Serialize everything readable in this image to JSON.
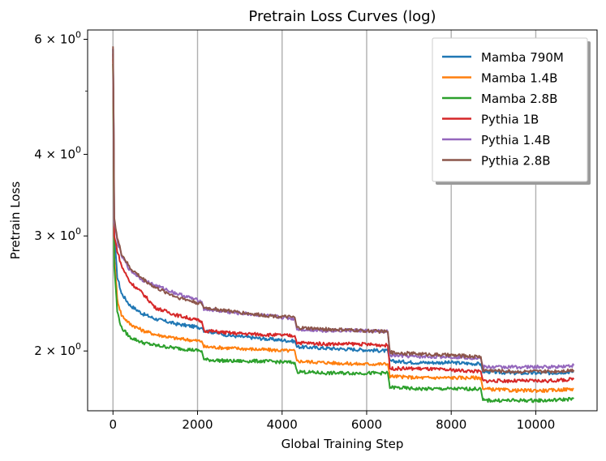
{
  "chart_data": {
    "type": "line",
    "title": "Pretrain Loss Curves (log)",
    "xlabel": "Global Training Step",
    "ylabel": "Pretrain Loss",
    "yscale": "log",
    "xlim": [
      -600,
      11450
    ],
    "ylim": [
      1.62,
      6.2
    ],
    "x_ticks": [
      0,
      2000,
      4000,
      6000,
      8000,
      10000
    ],
    "x_tick_labels": [
      "0",
      "2000",
      "4000",
      "6000",
      "8000",
      "10000"
    ],
    "y_ticks": [
      {
        "value": 2,
        "base": "2",
        "exp": "0"
      },
      {
        "value": 3,
        "base": "3",
        "exp": "0"
      },
      {
        "value": 4,
        "base": "4",
        "exp": "0"
      },
      {
        "value": 6,
        "base": "6",
        "exp": "0"
      }
    ],
    "grid": "x-major",
    "legend_position": "top-right",
    "series": [
      {
        "name": "Mamba 790M",
        "color": "#1f77b4",
        "x": [
          0,
          30,
          100,
          200,
          400,
          700,
          1000,
          1500,
          2100,
          2150,
          2800,
          3500,
          4300,
          4350,
          5000,
          5800,
          6500,
          6550,
          7200,
          8000,
          8700,
          8750,
          9500,
          10300,
          10900
        ],
        "y": [
          5.8,
          3.0,
          2.6,
          2.45,
          2.35,
          2.28,
          2.24,
          2.2,
          2.17,
          2.15,
          2.11,
          2.09,
          2.07,
          2.03,
          2.02,
          2.01,
          2.0,
          1.93,
          1.92,
          1.92,
          1.91,
          1.86,
          1.85,
          1.85,
          1.86
        ]
      },
      {
        "name": "Mamba 1.4B",
        "color": "#ff7f0e",
        "x": [
          0,
          30,
          100,
          200,
          400,
          700,
          1000,
          1500,
          2100,
          2150,
          2800,
          3500,
          4300,
          4350,
          5000,
          5800,
          6500,
          6550,
          7200,
          8000,
          8700,
          8750,
          9500,
          10300,
          10900
        ],
        "y": [
          5.6,
          2.8,
          2.4,
          2.27,
          2.2,
          2.15,
          2.12,
          2.09,
          2.07,
          2.03,
          2.02,
          2.01,
          2.0,
          1.93,
          1.92,
          1.91,
          1.91,
          1.83,
          1.82,
          1.82,
          1.82,
          1.75,
          1.74,
          1.74,
          1.75
        ]
      },
      {
        "name": "Mamba 2.8B",
        "color": "#2ca02c",
        "x": [
          0,
          30,
          100,
          200,
          400,
          700,
          1000,
          1500,
          2100,
          2150,
          2800,
          3500,
          4300,
          4350,
          5000,
          5800,
          6500,
          6550,
          7200,
          8000,
          8700,
          8750,
          9500,
          10300,
          10900
        ],
        "y": [
          5.5,
          2.7,
          2.3,
          2.17,
          2.1,
          2.06,
          2.04,
          2.02,
          2.0,
          1.94,
          1.93,
          1.93,
          1.92,
          1.86,
          1.85,
          1.85,
          1.85,
          1.76,
          1.75,
          1.75,
          1.75,
          1.68,
          1.68,
          1.68,
          1.69
        ]
      },
      {
        "name": "Pythia 1B",
        "color": "#d62728",
        "x": [
          0,
          30,
          100,
          200,
          400,
          700,
          1000,
          1500,
          2100,
          2150,
          2800,
          3500,
          4300,
          4350,
          5000,
          5800,
          6500,
          6550,
          7200,
          8000,
          8700,
          8750,
          9500,
          10300,
          10900
        ],
        "y": [
          5.7,
          3.0,
          2.85,
          2.7,
          2.55,
          2.45,
          2.33,
          2.27,
          2.22,
          2.15,
          2.13,
          2.12,
          2.11,
          2.06,
          2.05,
          2.05,
          2.04,
          1.88,
          1.88,
          1.87,
          1.86,
          1.8,
          1.8,
          1.8,
          1.81
        ]
      },
      {
        "name": "Pythia 1.4B",
        "color": "#9467bd",
        "x": [
          0,
          30,
          100,
          200,
          400,
          700,
          1000,
          1500,
          2100,
          2150,
          2800,
          3500,
          4300,
          4350,
          5000,
          5800,
          6500,
          6550,
          7200,
          8000,
          8700,
          8750,
          9500,
          10300,
          10900
        ],
        "y": [
          5.8,
          3.15,
          2.95,
          2.8,
          2.66,
          2.57,
          2.52,
          2.45,
          2.38,
          2.32,
          2.29,
          2.27,
          2.24,
          2.16,
          2.15,
          2.15,
          2.14,
          1.97,
          1.96,
          1.96,
          1.95,
          1.89,
          1.89,
          1.89,
          1.9
        ]
      },
      {
        "name": "Pythia 2.8B",
        "color": "#8c564b",
        "x": [
          0,
          30,
          100,
          200,
          400,
          700,
          1000,
          1500,
          2100,
          2150,
          2800,
          3500,
          4300,
          4350,
          5000,
          5800,
          6500,
          6550,
          7200,
          8000,
          8700,
          8750,
          9500,
          10300,
          10900
        ],
        "y": [
          5.85,
          3.2,
          2.98,
          2.82,
          2.68,
          2.58,
          2.5,
          2.42,
          2.36,
          2.33,
          2.3,
          2.27,
          2.25,
          2.17,
          2.16,
          2.15,
          2.14,
          1.99,
          1.98,
          1.97,
          1.96,
          1.87,
          1.86,
          1.86,
          1.87
        ]
      }
    ]
  }
}
